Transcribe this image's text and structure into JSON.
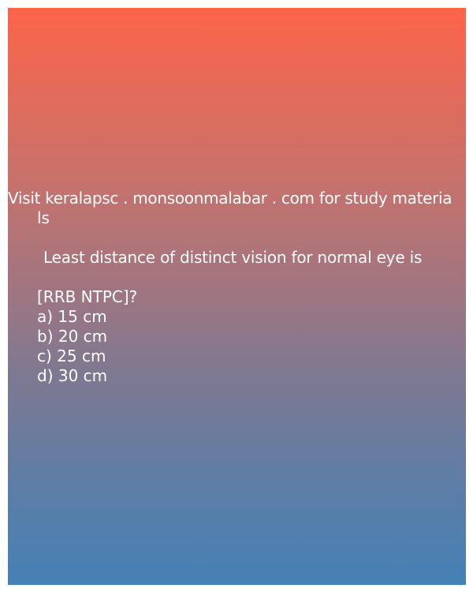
{
  "promo": {
    "line1": "Visit keralapsc . monsoonmalabar . com for study materia",
    "line2": "ls"
  },
  "question": {
    "line1": "Least distance of distinct vision for normal eye is",
    "line2": "[RRB NTPC]?"
  },
  "options": [
    "a) 15 cm",
    "b) 20 cm",
    "c) 25 cm",
    "d) 30 cm"
  ],
  "colors": {
    "gradient_top": "#fd6449",
    "gradient_bottom": "#4581b5",
    "text": "#ffffff"
  }
}
